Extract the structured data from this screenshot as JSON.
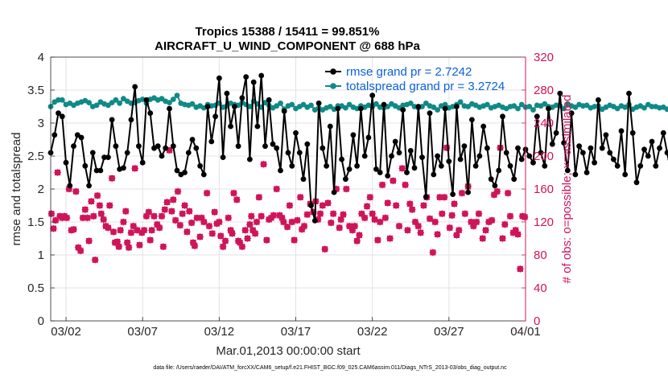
{
  "chart_data": {
    "type": "line",
    "title": "Tropics 15388 / 15411 = 99.851%",
    "subtitle": "AIRCRAFT_U_WIND_COMPONENT @ 688 hPa",
    "xlabel": "Mar.01,2013 00:00:00 start",
    "ylabel": "rmse and totalspread",
    "ylabel_right": "# of obs: o=possible; ×=assimilated",
    "footnote": "data file: /Users/raeder/DAI/ATM_forcXX/CAM6_setup/f.e21.FHIST_BGC.f09_025.CAM6assim.011/Diags_NTrS_2013-03/obs_diag_output.nc",
    "xlim": [
      0,
      31
    ],
    "ylim": [
      0,
      4
    ],
    "ylim_right": [
      0,
      320
    ],
    "grid": true,
    "legend_position": "top-right",
    "x_ticks": [
      {
        "x": 1,
        "label": "03/02"
      },
      {
        "x": 6,
        "label": "03/07"
      },
      {
        "x": 11,
        "label": "03/12"
      },
      {
        "x": 16,
        "label": "03/17"
      },
      {
        "x": 21,
        "label": "03/22"
      },
      {
        "x": 26,
        "label": "03/27"
      },
      {
        "x": 31,
        "label": "04/01"
      }
    ],
    "y_ticks_left": [
      "0",
      "0.5",
      "1",
      "1.5",
      "2",
      "2.5",
      "3",
      "3.5",
      "4"
    ],
    "y_ticks_right": [
      "0",
      "40",
      "80",
      "120",
      "160",
      "200",
      "240",
      "280",
      "320"
    ],
    "x_step": 0.25,
    "series": [
      {
        "name": "rmse",
        "legend_label": "rmse grand pr = 2.7242",
        "color": "#000000",
        "axis": "left",
        "values": [
          2.55,
          2.82,
          3.15,
          3.1,
          2.4,
          2.05,
          2.65,
          2.82,
          2.78,
          2.35,
          2.05,
          2.55,
          2.28,
          2.28,
          2.48,
          2.48,
          3.05,
          2.65,
          2.3,
          2.32,
          2.55,
          3.05,
          3.55,
          2.65,
          2.4,
          3.35,
          3.15,
          2.62,
          2.65,
          2.5,
          2.62,
          3.22,
          2.65,
          2.28,
          2.22,
          2.25,
          2.55,
          2.75,
          2.62,
          2.35,
          2.22,
          3.25,
          2.72,
          3.1,
          3.68,
          2.48,
          3.45,
          2.95,
          3.25,
          2.65,
          3.38,
          3.7,
          2.45,
          3.62,
          2.95,
          3.72,
          2.65,
          3.35,
          2.68,
          2.62,
          2.28,
          3.18,
          2.55,
          2.35,
          2.85,
          2.55,
          2.15,
          2.68,
          1.75,
          1.52,
          3.3,
          2.62,
          2.35,
          2.95,
          1.95,
          3.22,
          2.45,
          2.15,
          2.3,
          2.82,
          2.35,
          3.22,
          2.5,
          2.78,
          3.42,
          2.3,
          2.25,
          3.28,
          2.2,
          2.5,
          2.72,
          2.55,
          3.2,
          2.25,
          2.58,
          2.32,
          3.25,
          2.48,
          1.88,
          3.15,
          2.22,
          2.5,
          2.35,
          3.22,
          2.42,
          1.92,
          3.25,
          2.45,
          2.65,
          1.95,
          3.05,
          2.35,
          2.5,
          2.95,
          2.62,
          2.15,
          2.05,
          2.28,
          3.1,
          2.55,
          2.35,
          2.15,
          2.62,
          2.45,
          2.6,
          2.5,
          2.4,
          3.1,
          2.55,
          2.35,
          3.22,
          2.68,
          2.85,
          3.45,
          2.7,
          2.28,
          3.15,
          2.22,
          2.65,
          2.55,
          2.25,
          2.62,
          2.4,
          3.35,
          2.62,
          2.82,
          2.55,
          2.45,
          2.35,
          2.88,
          2.22,
          3.45,
          2.85,
          2.1,
          2.35,
          2.6,
          2.5,
          2.72,
          2.35,
          2.62,
          2.85,
          2.55,
          2.25,
          2.82,
          3.0,
          2.3,
          2.45,
          2.22,
          2.58,
          2.45,
          2.58
        ]
      },
      {
        "name": "totalspread",
        "legend_label": "totalspread grand pr = 3.2724",
        "color": "#0f8a87",
        "axis": "left",
        "values": [
          3.25,
          3.32,
          3.35,
          3.35,
          3.28,
          3.3,
          3.27,
          3.3,
          3.32,
          3.34,
          3.31,
          3.25,
          3.27,
          3.32,
          3.29,
          3.27,
          3.31,
          3.35,
          3.3,
          3.37,
          3.33,
          3.3,
          3.31,
          3.34,
          3.36,
          3.3,
          3.36,
          3.38,
          3.35,
          3.37,
          3.33,
          3.31,
          3.36,
          3.42,
          3.3,
          3.28,
          3.27,
          3.29,
          3.24,
          3.26,
          3.23,
          3.28,
          3.26,
          3.27,
          3.3,
          3.24,
          3.26,
          3.3,
          3.28,
          3.27,
          3.31,
          3.28,
          3.25,
          3.33,
          3.29,
          3.24,
          3.31,
          3.27,
          3.23,
          3.26,
          3.3,
          3.21,
          3.26,
          3.28,
          3.22,
          3.25,
          3.28,
          3.24,
          3.27,
          3.2,
          3.23,
          3.2,
          3.23,
          3.25,
          3.21,
          3.26,
          3.26,
          3.23,
          3.28,
          3.24,
          3.22,
          3.26,
          3.24,
          3.27,
          3.25,
          3.29,
          3.24,
          3.23,
          3.25,
          3.29,
          3.26,
          3.23,
          3.27,
          3.28,
          3.3,
          3.25,
          3.23,
          3.25,
          3.3,
          3.26,
          3.24,
          3.2,
          3.26,
          3.28,
          3.23,
          3.25,
          3.28,
          3.32,
          3.26,
          3.25,
          3.29,
          3.27,
          3.24,
          3.26,
          3.28,
          3.23,
          3.25,
          3.27,
          3.24,
          3.22,
          3.25,
          3.26,
          3.22,
          3.28,
          3.24,
          3.25,
          3.2,
          3.27,
          3.26,
          3.29,
          3.25,
          3.24,
          3.27,
          3.26,
          3.22,
          3.29,
          3.26,
          3.24,
          3.28,
          3.26,
          3.27,
          3.23,
          3.25,
          3.26,
          3.21,
          3.24,
          3.27,
          3.25,
          3.22,
          3.26,
          3.24,
          3.28,
          3.21,
          3.24,
          3.26,
          3.23,
          3.28,
          3.25,
          3.25,
          3.23,
          3.24,
          3.21,
          3.25,
          3.28,
          3.23,
          3.25,
          3.24,
          3.26,
          3.22,
          3.25,
          3.23,
          3.27,
          3.24,
          3.22,
          3.25
        ]
      },
      {
        "name": "obs_count",
        "color": "#d0145a",
        "axis": "right",
        "points": [
          [
            0.05,
            130
          ],
          [
            0.18,
            112
          ],
          [
            0.32,
            122
          ],
          [
            0.45,
            180
          ],
          [
            0.6,
            127
          ],
          [
            0.75,
            125
          ],
          [
            0.9,
            127
          ],
          [
            1.05,
            125
          ],
          [
            1.2,
            160
          ],
          [
            1.35,
            110
          ],
          [
            1.5,
            111
          ],
          [
            1.65,
            157
          ],
          [
            1.8,
            89
          ],
          [
            1.95,
            85
          ],
          [
            2.1,
            125
          ],
          [
            2.25,
            135
          ],
          [
            2.4,
            125
          ],
          [
            2.5,
            97
          ],
          [
            2.65,
            145
          ],
          [
            2.8,
            127
          ],
          [
            2.9,
            74
          ],
          [
            3.05,
            152
          ],
          [
            3.2,
            140
          ],
          [
            3.3,
            130
          ],
          [
            3.45,
            123
          ],
          [
            3.6,
            115
          ],
          [
            3.75,
            113
          ],
          [
            3.85,
            140
          ],
          [
            4.0,
            173
          ],
          [
            4.1,
            108
          ],
          [
            4.2,
            95
          ],
          [
            4.35,
            96
          ],
          [
            4.45,
            90
          ],
          [
            4.55,
            110
          ],
          [
            4.75,
            120
          ],
          [
            4.9,
            133
          ],
          [
            5.0,
            95
          ],
          [
            5.1,
            89
          ],
          [
            5.25,
            107
          ],
          [
            5.4,
            115
          ],
          [
            5.5,
            185
          ],
          [
            5.65,
            110
          ],
          [
            5.8,
            92
          ],
          [
            5.95,
            107
          ],
          [
            6.1,
            110
          ],
          [
            6.25,
            127
          ],
          [
            6.4,
            132
          ],
          [
            6.5,
            98
          ],
          [
            6.6,
            110
          ],
          [
            6.75,
            127
          ],
          [
            6.95,
            117
          ],
          [
            7.1,
            113
          ],
          [
            7.25,
            127
          ],
          [
            7.35,
            90
          ],
          [
            7.45,
            135
          ],
          [
            7.6,
            144
          ],
          [
            7.75,
            207
          ],
          [
            7.9,
            133
          ],
          [
            8.0,
            147
          ],
          [
            8.15,
            122
          ],
          [
            8.3,
            157
          ],
          [
            8.45,
            116
          ],
          [
            8.6,
            130
          ],
          [
            8.75,
            140
          ],
          [
            8.9,
            108
          ],
          [
            9.05,
            133
          ],
          [
            9.2,
            119
          ],
          [
            9.3,
            95
          ],
          [
            9.4,
            91
          ],
          [
            9.55,
            125
          ],
          [
            9.75,
            102
          ],
          [
            9.85,
            125
          ],
          [
            10.0,
            120
          ],
          [
            10.2,
            155
          ],
          [
            10.35,
            115
          ],
          [
            10.55,
            106
          ],
          [
            10.7,
            132
          ],
          [
            10.85,
            118
          ],
          [
            11.0,
            120
          ],
          [
            11.1,
            103
          ],
          [
            11.25,
            90
          ],
          [
            11.4,
            97
          ],
          [
            11.6,
            125
          ],
          [
            11.75,
            110
          ],
          [
            11.85,
            106
          ],
          [
            11.95,
            155
          ],
          [
            12.15,
            147
          ],
          [
            12.25,
            97
          ],
          [
            12.35,
            95
          ],
          [
            12.5,
            90
          ],
          [
            12.7,
            110
          ],
          [
            12.85,
            100
          ],
          [
            13.0,
            117
          ],
          [
            13.1,
            127
          ],
          [
            13.2,
            110
          ],
          [
            13.35,
            106
          ],
          [
            13.45,
            120
          ],
          [
            13.6,
            150
          ],
          [
            13.75,
            127
          ],
          [
            13.9,
            190
          ],
          [
            14.1,
            98
          ],
          [
            14.25,
            123
          ],
          [
            14.4,
            125
          ],
          [
            14.55,
            128
          ],
          [
            14.75,
            160
          ],
          [
            14.95,
            128
          ],
          [
            15.1,
            125
          ],
          [
            15.2,
            120
          ],
          [
            15.45,
            114
          ],
          [
            15.6,
            140
          ],
          [
            15.75,
            120
          ],
          [
            15.9,
            98
          ],
          [
            16.1,
            122
          ],
          [
            16.3,
            150
          ],
          [
            16.4,
            111
          ],
          [
            16.55,
            115
          ],
          [
            16.75,
            129
          ],
          [
            16.95,
            142
          ],
          [
            17.15,
            132
          ],
          [
            17.3,
            145
          ],
          [
            17.45,
            123
          ],
          [
            17.6,
            130
          ],
          [
            17.75,
            140
          ],
          [
            17.9,
            87
          ],
          [
            18.1,
            143
          ],
          [
            18.3,
            119
          ],
          [
            18.45,
            130
          ],
          [
            18.65,
            160
          ],
          [
            18.85,
            113
          ],
          [
            18.95,
            123
          ],
          [
            19.1,
            129
          ],
          [
            19.3,
            160
          ],
          [
            19.5,
            115
          ],
          [
            19.7,
            110
          ],
          [
            19.85,
            115
          ],
          [
            20.0,
            97
          ],
          [
            20.15,
            104
          ],
          [
            20.3,
            130
          ],
          [
            20.5,
            125
          ],
          [
            20.65,
            139
          ],
          [
            20.85,
            150
          ],
          [
            21.0,
            130
          ],
          [
            21.15,
            123
          ],
          [
            21.35,
            98
          ],
          [
            21.5,
            120
          ],
          [
            21.65,
            165
          ],
          [
            21.85,
            125
          ],
          [
            22.0,
            143
          ],
          [
            22.15,
            100
          ],
          [
            22.35,
            170
          ],
          [
            22.55,
            140
          ],
          [
            22.75,
            115
          ],
          [
            22.95,
            185
          ],
          [
            23.15,
            165
          ],
          [
            23.3,
            110
          ],
          [
            23.45,
            142
          ],
          [
            23.6,
            135
          ],
          [
            23.8,
            120
          ],
          [
            24.0,
            115
          ],
          [
            24.15,
            107
          ],
          [
            24.35,
            140
          ],
          [
            24.55,
            150
          ],
          [
            24.75,
            124
          ],
          [
            24.95,
            83
          ],
          [
            25.1,
            120
          ],
          [
            25.25,
            105
          ],
          [
            25.4,
            150
          ],
          [
            25.55,
            130
          ],
          [
            25.7,
            150
          ],
          [
            25.85,
            210
          ],
          [
            26.05,
            113
          ],
          [
            26.2,
            128
          ],
          [
            26.35,
            142
          ],
          [
            26.5,
            104
          ],
          [
            26.65,
            110
          ],
          [
            26.85,
            155
          ],
          [
            27.05,
            130
          ],
          [
            27.25,
            163
          ],
          [
            27.45,
            120
          ],
          [
            27.6,
            115
          ],
          [
            27.8,
            120
          ],
          [
            27.95,
            130
          ],
          [
            28.2,
            100
          ],
          [
            28.4,
            110
          ],
          [
            28.6,
            120
          ],
          [
            28.8,
            122
          ],
          [
            28.95,
            153
          ],
          [
            29.15,
            157
          ],
          [
            29.35,
            210
          ],
          [
            29.5,
            100
          ],
          [
            29.65,
            117
          ],
          [
            29.85,
            155
          ],
          [
            30.0,
            127
          ],
          [
            30.2,
            107
          ],
          [
            30.35,
            110
          ],
          [
            30.5,
            105
          ],
          [
            30.65,
            63
          ],
          [
            30.8,
            127
          ],
          [
            30.95,
            126
          ]
        ]
      }
    ]
  }
}
